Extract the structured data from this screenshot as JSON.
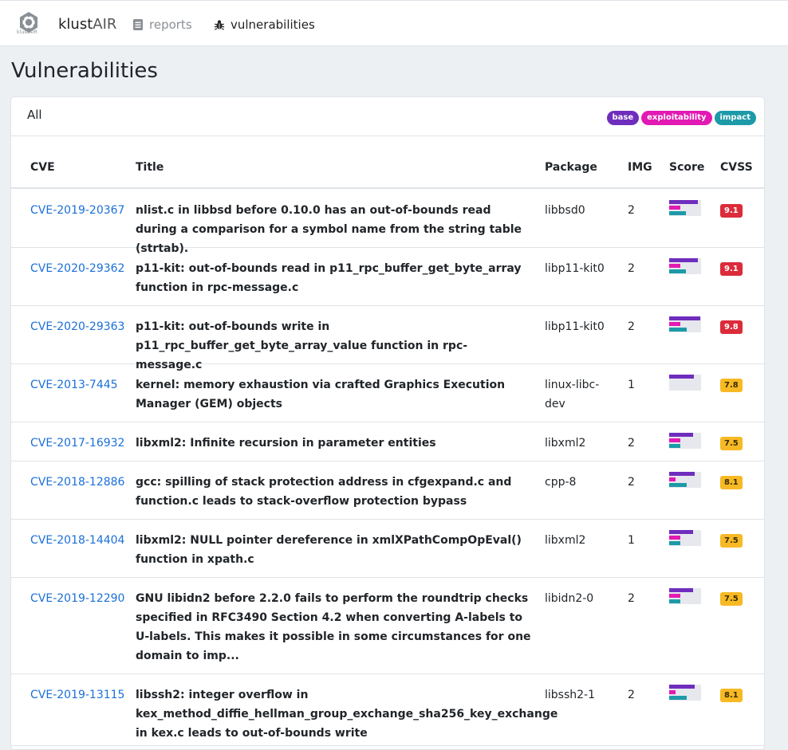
{
  "navbar": {
    "logo_text": "klustAIR",
    "brand_strong": "klust",
    "brand_light": "AIR",
    "reports_label": "reports",
    "vulnerabilities_label": "vulnerabilities",
    "reports_icon": "document-icon",
    "vulnerabilities_icon": "bug-icon"
  },
  "page": {
    "title": "Vulnerabilities"
  },
  "card": {
    "tab_label": "All",
    "legend": [
      {
        "label": "base",
        "color": "#6f2dbd"
      },
      {
        "label": "exploitability",
        "color": "#e21ab3"
      },
      {
        "label": "impact",
        "color": "#1c9aa8"
      }
    ]
  },
  "table": {
    "headers": {
      "cve": "CVE",
      "title": "Title",
      "package": "Package",
      "img": "IMG",
      "score": "Score",
      "cvss": "CVSS"
    },
    "rows": [
      {
        "cve": "CVE-2019-20367",
        "title": "nlist.c in libbsd before 0.10.0 has an out-of-bounds read during a comparison for a symbol name from the string table (strtab).",
        "package": "libbsd0",
        "img": "2",
        "cvss": "9.1",
        "severity": "critical",
        "score": {
          "base": 0.9,
          "exploitability": 0.35,
          "impact": 0.52
        }
      },
      {
        "cve": "CVE-2020-29362",
        "title": "p11-kit: out-of-bounds read in p11_rpc_buffer_get_byte_array function in rpc-message.c",
        "package": "libp11-kit0",
        "img": "2",
        "cvss": "9.1",
        "severity": "critical",
        "score": {
          "base": 0.9,
          "exploitability": 0.35,
          "impact": 0.52
        }
      },
      {
        "cve": "CVE-2020-29363",
        "title": "p11-kit: out-of-bounds write in p11_rpc_buffer_get_byte_array_value function in rpc-message.c",
        "package": "libp11-kit0",
        "img": "2",
        "cvss": "9.8",
        "severity": "critical",
        "score": {
          "base": 0.98,
          "exploitability": 0.35,
          "impact": 0.55
        }
      },
      {
        "cve": "CVE-2013-7445",
        "title": "kernel: memory exhaustion via crafted Graphics Execution Manager (GEM) objects",
        "package": "linux-libc-dev",
        "img": "1",
        "cvss": "7.8",
        "severity": "high",
        "score": {
          "base": 0.78,
          "exploitability": 0,
          "impact": 0
        }
      },
      {
        "cve": "CVE-2017-16932",
        "title": "libxml2: Infinite recursion in parameter entities",
        "package": "libxml2",
        "img": "2",
        "cvss": "7.5",
        "severity": "high",
        "score": {
          "base": 0.75,
          "exploitability": 0.35,
          "impact": 0.35
        }
      },
      {
        "cve": "CVE-2018-12886",
        "title": "gcc: spilling of stack protection address in cfgexpand.c and function.c leads to stack-overflow protection bypass",
        "package": "cpp-8",
        "img": "2",
        "cvss": "8.1",
        "severity": "high",
        "score": {
          "base": 0.81,
          "exploitability": 0.2,
          "impact": 0.55
        }
      },
      {
        "cve": "CVE-2018-14404",
        "title": "libxml2: NULL pointer dereference in xmlXPathCompOpEval() function in xpath.c",
        "package": "libxml2",
        "img": "1",
        "cvss": "7.5",
        "severity": "high",
        "score": {
          "base": 0.75,
          "exploitability": 0.35,
          "impact": 0.35
        }
      },
      {
        "cve": "CVE-2019-12290",
        "title": "GNU libidn2 before 2.2.0 fails to perform the roundtrip checks specified in RFC3490 Section 4.2 when converting A-labels to U-labels. This makes it possible in some circumstances for one domain to imp...",
        "package": "libidn2-0",
        "img": "2",
        "cvss": "7.5",
        "severity": "high",
        "score": {
          "base": 0.75,
          "exploitability": 0.35,
          "impact": 0.35
        }
      },
      {
        "cve": "CVE-2019-13115",
        "title": "libssh2: integer overflow in kex_method_diffie_hellman_group_exchange_sha256_key_exchange in kex.c leads to out-of-bounds write",
        "package": "libssh2-1",
        "img": "2",
        "cvss": "8.1",
        "severity": "high",
        "score": {
          "base": 0.81,
          "exploitability": 0.2,
          "impact": 0.55
        }
      }
    ]
  }
}
